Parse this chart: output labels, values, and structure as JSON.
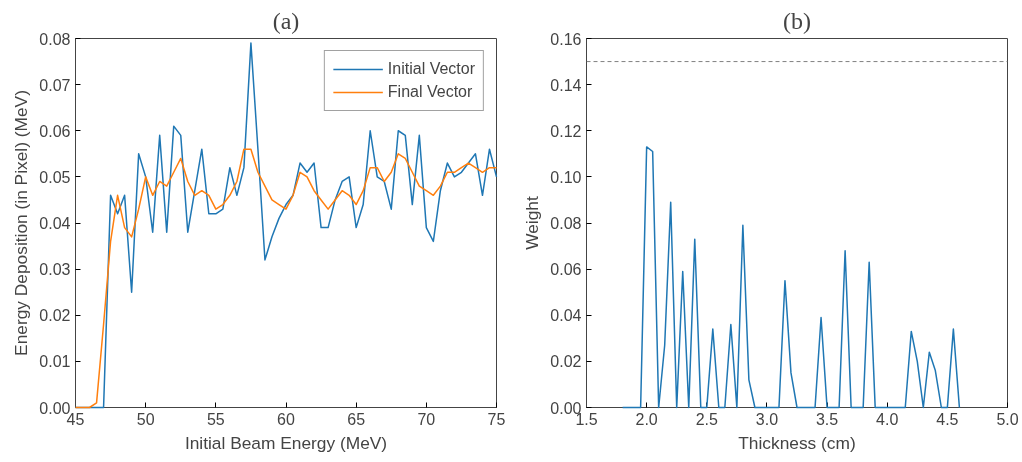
{
  "chart_data": [
    {
      "type": "line",
      "title": "(a)",
      "xlabel": "Initial Beam Energy (MeV)",
      "ylabel": "Energy Deposition (in Pixel) (MeV)",
      "x": [
        45,
        45.5,
        46,
        46.5,
        47,
        47.5,
        48,
        48.5,
        49,
        49.5,
        50,
        50.5,
        51,
        51.5,
        52,
        52.5,
        53,
        53.5,
        54,
        54.5,
        55,
        55.5,
        56,
        56.5,
        57,
        57.5,
        58,
        58.5,
        59,
        59.5,
        60,
        60.5,
        61,
        61.5,
        62,
        62.5,
        63,
        63.5,
        64,
        64.5,
        65,
        65.5,
        66,
        66.5,
        67,
        67.5,
        68,
        68.5,
        69,
        69.5,
        70,
        70.5,
        71,
        71.5,
        72,
        72.5,
        73,
        73.5,
        74,
        74.5,
        75
      ],
      "series": [
        {
          "name": "Initial Vector",
          "color": "#1f77b4",
          "values": [
            0,
            0,
            0,
            0,
            0,
            0.046,
            0.042,
            0.046,
            0.025,
            0.055,
            0.05,
            0.038,
            0.059,
            0.038,
            0.061,
            0.059,
            0.038,
            0.047,
            0.056,
            0.042,
            0.042,
            0.043,
            0.052,
            0.046,
            0.052,
            0.079,
            0.056,
            0.032,
            0.037,
            0.041,
            0.044,
            0.046,
            0.053,
            0.051,
            0.053,
            0.039,
            0.039,
            0.045,
            0.049,
            0.05,
            0.039,
            0.044,
            0.06,
            0.05,
            0.049,
            0.043,
            0.06,
            0.059,
            0.044,
            0.059,
            0.039,
            0.036,
            0.047,
            0.053,
            0.05,
            0.051,
            0.053,
            0.055,
            0.046,
            0.056,
            0.05
          ]
        },
        {
          "name": "Final Vector",
          "color": "#ff7f0e",
          "values": [
            0,
            0,
            0,
            0.001,
            0.018,
            0.036,
            0.046,
            0.039,
            0.037,
            0.043,
            0.05,
            0.046,
            0.049,
            0.048,
            0.051,
            0.054,
            0.049,
            0.046,
            0.047,
            0.046,
            0.043,
            0.044,
            0.046,
            0.049,
            0.056,
            0.056,
            0.051,
            0.048,
            0.045,
            0.044,
            0.043,
            0.046,
            0.051,
            0.05,
            0.047,
            0.045,
            0.043,
            0.045,
            0.047,
            0.046,
            0.044,
            0.047,
            0.052,
            0.052,
            0.049,
            0.051,
            0.055,
            0.054,
            0.051,
            0.048,
            0.047,
            0.046,
            0.048,
            0.051,
            0.051,
            0.052,
            0.053,
            0.052,
            0.051,
            0.052,
            0.052
          ]
        }
      ],
      "xlim": [
        45,
        75
      ],
      "xticks": [
        45,
        50,
        55,
        60,
        65,
        70,
        75
      ],
      "ylim": [
        0,
        0.08
      ],
      "yticks": [
        {
          "value": 0,
          "label": "0.00"
        },
        {
          "value": 0.01,
          "label": "0.01"
        },
        {
          "value": 0.02,
          "label": "0.02"
        },
        {
          "value": 0.03,
          "label": "0.03"
        },
        {
          "value": 0.04,
          "label": "0.04"
        },
        {
          "value": 0.05,
          "label": "0.05"
        },
        {
          "value": 0.06,
          "label": "0.06"
        },
        {
          "value": 0.07,
          "label": "0.07"
        },
        {
          "value": 0.08,
          "label": "0.08"
        }
      ],
      "legend": "top right",
      "grid": false
    },
    {
      "type": "line",
      "title": "(b)",
      "xlabel": "Thickness (cm)",
      "ylabel": "Weight",
      "x": [
        1.8,
        1.85,
        1.9,
        1.95,
        2.0,
        2.05,
        2.1,
        2.15,
        2.2,
        2.25,
        2.3,
        2.35,
        2.4,
        2.45,
        2.5,
        2.55,
        2.6,
        2.65,
        2.7,
        2.75,
        2.8,
        2.85,
        2.9,
        2.95,
        3.0,
        3.05,
        3.1,
        3.15,
        3.2,
        3.25,
        3.3,
        3.35,
        3.4,
        3.45,
        3.5,
        3.55,
        3.6,
        3.65,
        3.7,
        3.75,
        3.8,
        3.85,
        3.9,
        3.95,
        4.0,
        4.05,
        4.1,
        4.15,
        4.2,
        4.25,
        4.3,
        4.35,
        4.4,
        4.45,
        4.5,
        4.55,
        4.6
      ],
      "series": [
        {
          "color": "#1f77b4",
          "values": [
            0,
            0,
            0,
            0,
            0.113,
            0.111,
            0,
            0.027,
            0.089,
            0,
            0.059,
            0,
            0.073,
            0,
            0,
            0.034,
            0,
            0,
            0.036,
            0,
            0.079,
            0.012,
            0,
            0,
            0,
            0,
            0,
            0.055,
            0.015,
            0,
            0,
            0,
            0,
            0.039,
            0,
            0,
            0,
            0.068,
            0,
            0,
            0,
            0.063,
            0,
            0,
            0,
            0,
            0,
            0,
            0.033,
            0.02,
            0,
            0.024,
            0.016,
            0,
            0,
            0.034,
            0
          ]
        }
      ],
      "xlim": [
        1.5,
        5.0
      ],
      "xticks": [
        {
          "value": 1.5,
          "label": "1.5"
        },
        {
          "value": 2.0,
          "label": "2.0"
        },
        {
          "value": 2.5,
          "label": "2.5"
        },
        {
          "value": 3.0,
          "label": "3.0"
        },
        {
          "value": 3.5,
          "label": "3.5"
        },
        {
          "value": 4.0,
          "label": "4.0"
        },
        {
          "value": 4.5,
          "label": "4.5"
        },
        {
          "value": 5.0,
          "label": "5.0"
        }
      ],
      "ylim": [
        0,
        0.16
      ],
      "yticks": [
        {
          "value": 0,
          "label": "0.00"
        },
        {
          "value": 0.02,
          "label": "0.02"
        },
        {
          "value": 0.04,
          "label": "0.04"
        },
        {
          "value": 0.06,
          "label": "0.06"
        },
        {
          "value": 0.08,
          "label": "0.08"
        },
        {
          "value": 0.1,
          "label": "0.10"
        },
        {
          "value": 0.12,
          "label": "0.12"
        },
        {
          "value": 0.14,
          "label": "0.14"
        },
        {
          "value": 0.16,
          "label": "0.16"
        }
      ],
      "ref_lines": [
        {
          "axis": "y",
          "value": 0.15,
          "color": "#808080",
          "line_style": "dashed"
        }
      ],
      "legend": false,
      "grid": false
    }
  ]
}
